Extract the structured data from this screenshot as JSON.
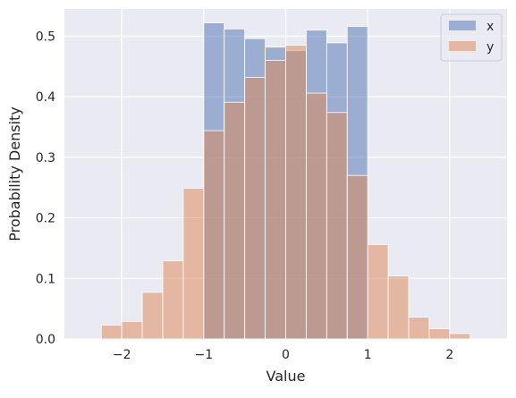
{
  "chart_data": {
    "type": "histogram",
    "title": "",
    "xlabel": "Value",
    "ylabel": "Probability Density",
    "xlim": [
      -2.7,
      2.7
    ],
    "ylim": [
      0,
      0.545
    ],
    "x_ticks": [
      -2,
      -1,
      0,
      1,
      2
    ],
    "y_ticks": [
      0.0,
      0.1,
      0.2,
      0.3,
      0.4,
      0.5
    ],
    "x_tick_labels": [
      "−2",
      "−1",
      "0",
      "1",
      "2"
    ],
    "y_tick_labels": [
      "0.0",
      "0.1",
      "0.2",
      "0.3",
      "0.4",
      "0.5"
    ],
    "grid": true,
    "legend_position": "top-right",
    "series": [
      {
        "name": "x",
        "color": "#4c72b0",
        "opacity": 0.5,
        "bins": [
          {
            "x0": -1.0,
            "x1": -0.75,
            "value": 0.522
          },
          {
            "x0": -0.75,
            "x1": -0.5,
            "value": 0.512
          },
          {
            "x0": -0.5,
            "x1": -0.25,
            "value": 0.496
          },
          {
            "x0": -0.25,
            "x1": 0.0,
            "value": 0.482
          },
          {
            "x0": 0.0,
            "x1": 0.25,
            "value": 0.476
          },
          {
            "x0": 0.25,
            "x1": 0.5,
            "value": 0.51
          },
          {
            "x0": 0.5,
            "x1": 0.75,
            "value": 0.489
          },
          {
            "x0": 0.75,
            "x1": 1.0,
            "value": 0.516
          }
        ]
      },
      {
        "name": "y",
        "color": "#dd8452",
        "opacity": 0.5,
        "bins": [
          {
            "x0": -2.25,
            "x1": -2.0,
            "value": 0.023
          },
          {
            "x0": -2.0,
            "x1": -1.75,
            "value": 0.029
          },
          {
            "x0": -1.75,
            "x1": -1.5,
            "value": 0.077
          },
          {
            "x0": -1.5,
            "x1": -1.25,
            "value": 0.129
          },
          {
            "x0": -1.25,
            "x1": -1.0,
            "value": 0.249
          },
          {
            "x0": -1.0,
            "x1": -0.75,
            "value": 0.344
          },
          {
            "x0": -0.75,
            "x1": -0.5,
            "value": 0.391
          },
          {
            "x0": -0.5,
            "x1": -0.25,
            "value": 0.432
          },
          {
            "x0": -0.25,
            "x1": 0.0,
            "value": 0.46
          },
          {
            "x0": 0.0,
            "x1": 0.25,
            "value": 0.485
          },
          {
            "x0": 0.25,
            "x1": 0.5,
            "value": 0.406
          },
          {
            "x0": 0.5,
            "x1": 0.75,
            "value": 0.374
          },
          {
            "x0": 0.75,
            "x1": 1.0,
            "value": 0.27
          },
          {
            "x0": 1.0,
            "x1": 1.25,
            "value": 0.156
          },
          {
            "x0": 1.25,
            "x1": 1.5,
            "value": 0.104
          },
          {
            "x0": 1.5,
            "x1": 1.75,
            "value": 0.036
          },
          {
            "x0": 1.75,
            "x1": 2.0,
            "value": 0.017
          },
          {
            "x0": 2.0,
            "x1": 2.25,
            "value": 0.009
          }
        ]
      }
    ],
    "style": {
      "plot_background": "#eaeaf2",
      "grid_color": "#ffffff",
      "bar_edge_color": "#ffffff",
      "text_color": "#262626",
      "legend_background": "#eaeaf2",
      "legend_border": "#cccccc"
    }
  }
}
